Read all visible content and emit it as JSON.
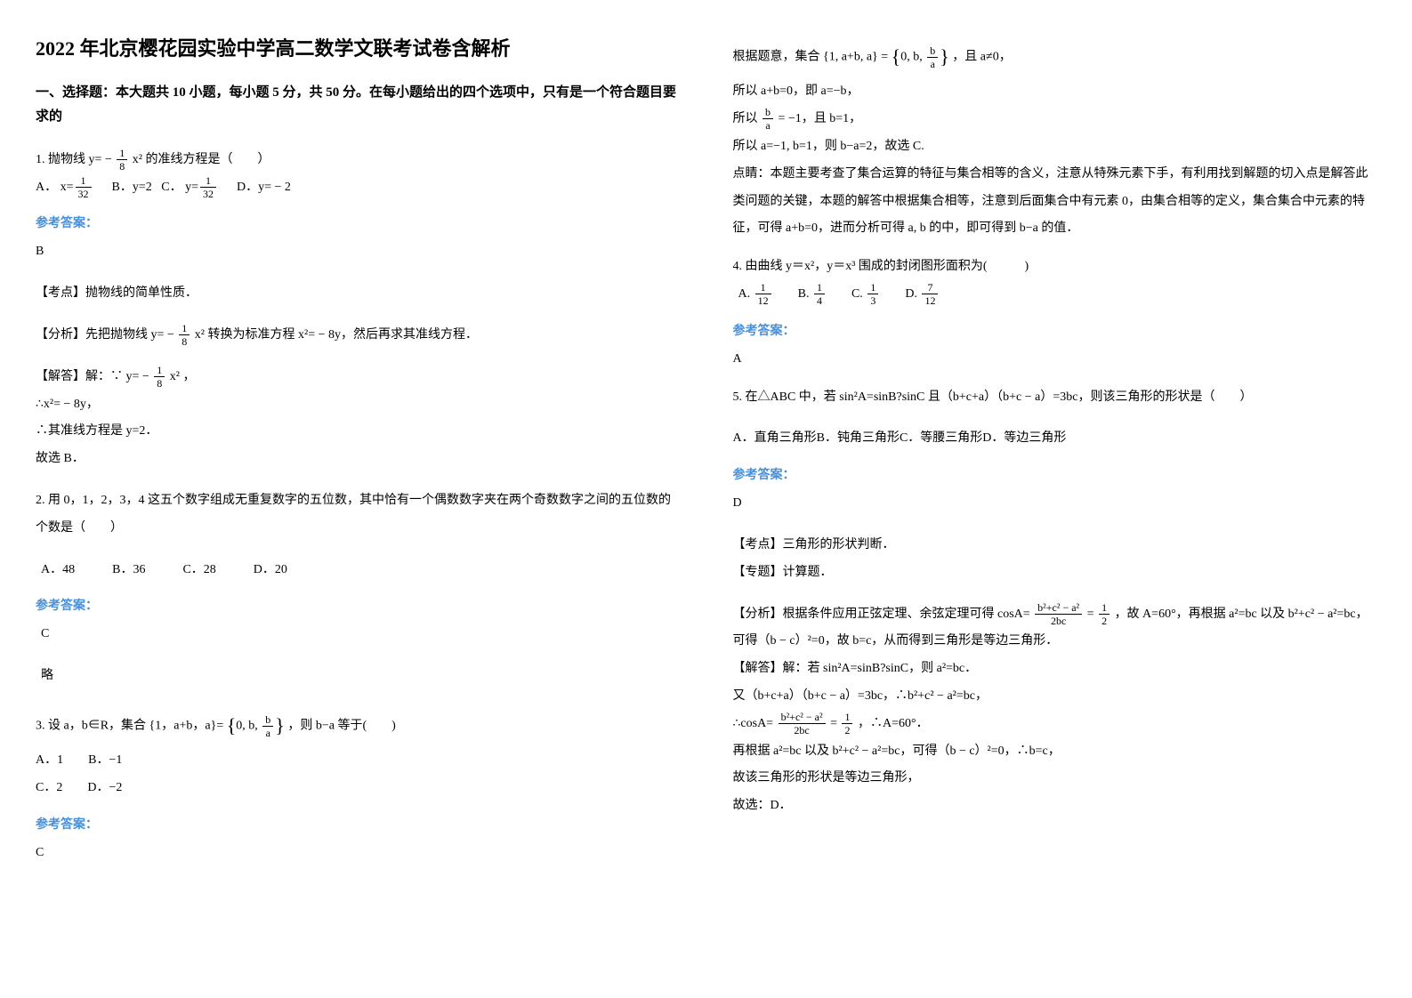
{
  "title": "2022 年北京樱花园实验中学高二数学文联考试卷含解析",
  "instruction": "一、选择题：本大题共 10 小题，每小题 5 分，共 50 分。在每小题给出的四个选项中，只有是一个符合题目要求的",
  "answerLabel": "参考答案：",
  "left": {
    "q1": {
      "stem_a": "1. 抛物线 y= − ",
      "stem_b": " x² 的准线方程是（　　）",
      "frac_n": "1",
      "frac_d": "8",
      "optA_pre": "A．",
      "optA_n": "1",
      "optA_d": "32",
      "optA_mid": "x=",
      "optB": "B．y=2",
      "optC_pre": "C．",
      "optC_n": "1",
      "optC_d": "32",
      "optC_mid": "y=",
      "optD": "D．y= − 2",
      "ans": "B",
      "kp": "【考点】抛物线的简单性质．",
      "fx_a": "【分析】先把抛物线 ",
      "fx_eq_a": "y= − ",
      "fx_n": "1",
      "fx_d": "8",
      "fx_eq_b": " x²",
      "fx_b": " 转换为标准方程 x²= − 8y，然后再求其准线方程．",
      "jd_a": "【解答】解：∵ ",
      "jd_eq_a": "y= − ",
      "jd_n": "1",
      "jd_d": "8",
      "jd_eq_b": " x²",
      "jd_b": "，",
      "step1": "∴x²= − 8y，",
      "step2": "∴其准线方程是 y=2．",
      "step3": "故选 B．"
    },
    "q2": {
      "stem": "2. 用 0，1，2，3，4 这五个数字组成无重复数字的五位数，其中恰有一个偶数数字夹在两个奇数数字之间的五位数的个数是（　　）",
      "opts": "A．48　　　B．36　　　C．28　　　D．20",
      "ans": "C",
      "note": "略"
    },
    "q3": {
      "stem_a": "3. 设 a，b∈R，集合 {1，a+b，a}= ",
      "set_outer_l": "{",
      "set_a": "0, b, ",
      "set_frac_n": "b",
      "set_frac_d": "a",
      "set_outer_r": "}",
      "stem_b": "，则 b−a 等于(　　)",
      "opts1": "A．1　　B．−1",
      "opts2": "C．2　　D．−2",
      "ans": "C"
    }
  },
  "right": {
    "q3sol": {
      "l1_a": "根据题意，集合 ",
      "l1_set_l": "{1, a+b, a} = ",
      "l1_set_in_l": "{",
      "l1_set_a": "0, b, ",
      "l1_frac_n": "b",
      "l1_frac_d": "a",
      "l1_set_in_r": "}",
      "l1_b": "，且 a≠0，",
      "l2": "所以 a+b=0，即 a=−b，",
      "l3a": "所以 ",
      "l3_frac_n": "b",
      "l3_frac_d": "a",
      "l3b": " = −1，且 b=1，",
      "l4": "所以 a=−1, b=1，则 b−a=2，故选 C.",
      "l5": "点睛：本题主要考查了集合运算的特征与集合相等的含义，注意从特殊元素下手，有利用找到解题的切入点是解答此类问题的关键，本题的解答中根据集合相等，注意到后面集合中有元素 0，由集合相等的定义，集合集合中元素的特征，可得 a+b=0，进而分析可得 a, b 的中，即可得到 b−a 的值．"
    },
    "q4": {
      "stem": "4. 由曲线 y＝x²，y＝x³ 围成的封闭图形面积为(　　　)",
      "optA": "A. ",
      "a_n": "1",
      "a_d": "12",
      "optB": "B. ",
      "b_n": "1",
      "b_d": "4",
      "optC": "C. ",
      "c_n": "1",
      "c_d": "3",
      "optD": "D. ",
      "d_n": "7",
      "d_d": "12",
      "ans": "A"
    },
    "q5": {
      "stem": "5. 在△ABC 中，若 sin²A=sinB?sinC 且（b+c+a）（b+c − a）=3bc，则该三角形的形状是（　　）",
      "opts": "A．直角三角形B．钝角三角形C．等腰三角形D．等边三角形",
      "ans": "D",
      "kp": "【考点】三角形的形状判断．",
      "zt": "【专题】计算题．",
      "fx_a": "【分析】根据条件应用正弦定理、余弦定理可得 cosA= ",
      "fx_frac1_n": "b²+c² − a²",
      "fx_frac1_d": "2bc",
      "fx_b": " = ",
      "fx_frac2_n": "1",
      "fx_frac2_d": "2",
      "fx_c": "，故 A=60°，再根据 a²=bc 以及 b²+c² − a²=bc，可得（b − c）²=0，故 b=c，从而得到三角形是等边三角形．",
      "jd1": "【解答】解：若 sin²A=sinB?sinC，则 a²=bc．",
      "jd2": "又（b+c+a）（b+c − a）=3bc，∴b²+c² − a²=bc，",
      "jd3_a": "∴cosA= ",
      "jd3_n": "b²+c² − a²",
      "jd3_d": "2bc",
      "jd3_b": " = ",
      "jd3_n2": "1",
      "jd3_d2": "2",
      "jd3_c": "，∴A=60°．",
      "jd4": "再根据 a²=bc 以及 b²+c² − a²=bc，可得（b − c）²=0，∴b=c，",
      "jd5": "故该三角形的形状是等边三角形，",
      "jd6": "故选：D．"
    }
  }
}
